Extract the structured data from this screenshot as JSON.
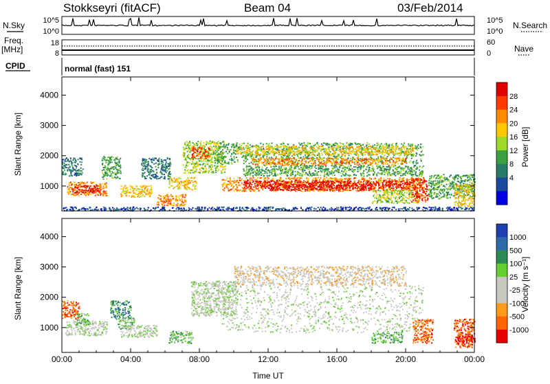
{
  "header": {
    "station": "Stokkseyri (fitACF)",
    "beam": "Beam 04",
    "date": "03/Feb/2014"
  },
  "top_panels": {
    "nsky_label": "N.Sky",
    "nsky_ticks": [
      "10^5",
      "10^0"
    ],
    "nsearch_label": "N.Search",
    "nsearch_ticks": [
      "10^5",
      "10^0"
    ],
    "freq_label_1": "Freq.",
    "freq_label_2": "[MHz]",
    "freq_ticks": [
      "18",
      "8"
    ],
    "nave_label": "Nave",
    "nave_ticks": [
      "60",
      "0"
    ],
    "cpid_label": "CPID",
    "cpid_value": "normal (fast) 151"
  },
  "chart_data": [
    {
      "type": "heatmap",
      "title": "",
      "xlabel": "",
      "ylabel": "Slant Range [km]",
      "x_ticks": [
        "00:00",
        "04:00",
        "08:00",
        "12:00",
        "16:00",
        "20:00",
        "00:00"
      ],
      "x_range_hours": [
        0,
        24
      ],
      "y_ticks": [
        1000,
        2000,
        3000,
        4000
      ],
      "ylim": [
        180,
        4600
      ],
      "colorbar": {
        "label": "Power [dB]",
        "ticks": [
          "28",
          "24",
          "20",
          "16",
          "12",
          "8",
          "4"
        ],
        "colors": [
          "#e00000",
          "#ff3a00",
          "#ff8c00",
          "#ffc800",
          "#9fd82a",
          "#3aa040",
          "#2a7a6a",
          "#1a4a9c",
          "#0000e0"
        ]
      },
      "regions": [
        {
          "t0": 0.0,
          "t1": 1.2,
          "r0": 1350,
          "r1": 1950,
          "level": 2
        },
        {
          "t0": 0.3,
          "t1": 2.6,
          "r0": 700,
          "r1": 1150,
          "level": 6
        },
        {
          "t0": 0.6,
          "t1": 2.2,
          "r0": 800,
          "r1": 1050,
          "level": 8
        },
        {
          "t0": 2.3,
          "t1": 3.4,
          "r0": 1250,
          "r1": 2000,
          "level": 3
        },
        {
          "t0": 3.4,
          "t1": 5.2,
          "r0": 650,
          "r1": 1050,
          "level": 5
        },
        {
          "t0": 4.6,
          "t1": 6.3,
          "r0": 1250,
          "r1": 1950,
          "level": 2
        },
        {
          "t0": 5.5,
          "t1": 7.2,
          "r0": 350,
          "r1": 750,
          "level": 6
        },
        {
          "t0": 6.2,
          "t1": 7.8,
          "r0": 900,
          "r1": 1300,
          "level": 5
        },
        {
          "t0": 7.0,
          "t1": 9.5,
          "r0": 1450,
          "r1": 2500,
          "level": 4
        },
        {
          "t0": 7.5,
          "t1": 8.6,
          "r0": 1900,
          "r1": 2300,
          "level": 7
        },
        {
          "t0": 9.0,
          "t1": 21.0,
          "r0": 1750,
          "r1": 2450,
          "level": 3
        },
        {
          "t0": 10.0,
          "t1": 20.5,
          "r0": 2050,
          "r1": 2350,
          "level": 5
        },
        {
          "t0": 11.0,
          "t1": 20.0,
          "r0": 1700,
          "r1": 1950,
          "level": 6
        },
        {
          "t0": 10.5,
          "t1": 21.0,
          "r0": 1350,
          "r1": 1700,
          "level": 3
        },
        {
          "t0": 9.3,
          "t1": 21.0,
          "r0": 850,
          "r1": 1300,
          "level": 6
        },
        {
          "t0": 10.5,
          "t1": 20.5,
          "r0": 950,
          "r1": 1200,
          "level": 8
        },
        {
          "t0": 12.0,
          "t1": 18.0,
          "r0": 880,
          "r1": 1050,
          "level": 8
        },
        {
          "t0": 18.0,
          "t1": 20.8,
          "r0": 450,
          "r1": 900,
          "level": 4
        },
        {
          "t0": 20.3,
          "t1": 21.3,
          "r0": 500,
          "r1": 1300,
          "level": 7
        },
        {
          "t0": 21.3,
          "t1": 24.0,
          "r0": 600,
          "r1": 1400,
          "level": 3
        },
        {
          "t0": 22.8,
          "t1": 24.0,
          "r0": 350,
          "r1": 1100,
          "level": 5
        },
        {
          "t0": 0.0,
          "t1": 24.0,
          "r0": 200,
          "r1": 330,
          "level": 1
        }
      ]
    },
    {
      "type": "heatmap",
      "title": "",
      "xlabel": "Time UT",
      "ylabel": "Slant Range [km]",
      "x_ticks": [
        "00:00",
        "04:00",
        "08:00",
        "12:00",
        "16:00",
        "20:00",
        "00:00"
      ],
      "x_range_hours": [
        0,
        24
      ],
      "y_ticks": [
        1000,
        2000,
        3000,
        4000
      ],
      "ylim": [
        180,
        4600
      ],
      "colorbar": {
        "label": "Velocity [m s⁻¹]",
        "ticks": [
          "1000",
          "500",
          "100",
          "25",
          "-25",
          "-100",
          "-500",
          "-1000"
        ],
        "colors": [
          "#1e40b0",
          "#2f6aa8",
          "#2e8a54",
          "#66cc33",
          "#c8c8c0",
          "#c8c8c0",
          "#ff9a1a",
          "#ff6600",
          "#e80000"
        ]
      },
      "regions": [
        {
          "t0": 0.2,
          "t1": 2.6,
          "r0": 750,
          "r1": 1250,
          "level": 4
        },
        {
          "t0": 0.0,
          "t1": 1.0,
          "r0": 1300,
          "r1": 1900,
          "level": 7
        },
        {
          "t0": 0.8,
          "t1": 1.6,
          "r0": 1100,
          "r1": 1500,
          "level": 3
        },
        {
          "t0": 2.8,
          "t1": 4.0,
          "r0": 1300,
          "r1": 1900,
          "level": 2
        },
        {
          "t0": 3.2,
          "t1": 4.2,
          "r0": 950,
          "r1": 1350,
          "level": 3
        },
        {
          "t0": 3.4,
          "t1": 5.5,
          "r0": 700,
          "r1": 1100,
          "level": 4
        },
        {
          "t0": 6.2,
          "t1": 7.6,
          "r0": 500,
          "r1": 900,
          "level": 3
        },
        {
          "t0": 7.5,
          "t1": 10.2,
          "r0": 1400,
          "r1": 2550,
          "level": 4
        },
        {
          "t0": 9.3,
          "t1": 21.0,
          "r0": 850,
          "r1": 2400,
          "level": 4
        },
        {
          "t0": 10.0,
          "t1": 20.0,
          "r0": 2400,
          "r1": 3050,
          "level": 5
        },
        {
          "t0": 18.0,
          "t1": 19.8,
          "r0": 500,
          "r1": 900,
          "level": 3
        },
        {
          "t0": 20.4,
          "t1": 21.6,
          "r0": 500,
          "r1": 1300,
          "level": 7
        },
        {
          "t0": 22.8,
          "t1": 24.0,
          "r0": 350,
          "r1": 1300,
          "level": 7
        },
        {
          "t0": 23.0,
          "t1": 24.0,
          "r0": 400,
          "r1": 800,
          "level": 8
        }
      ]
    }
  ]
}
